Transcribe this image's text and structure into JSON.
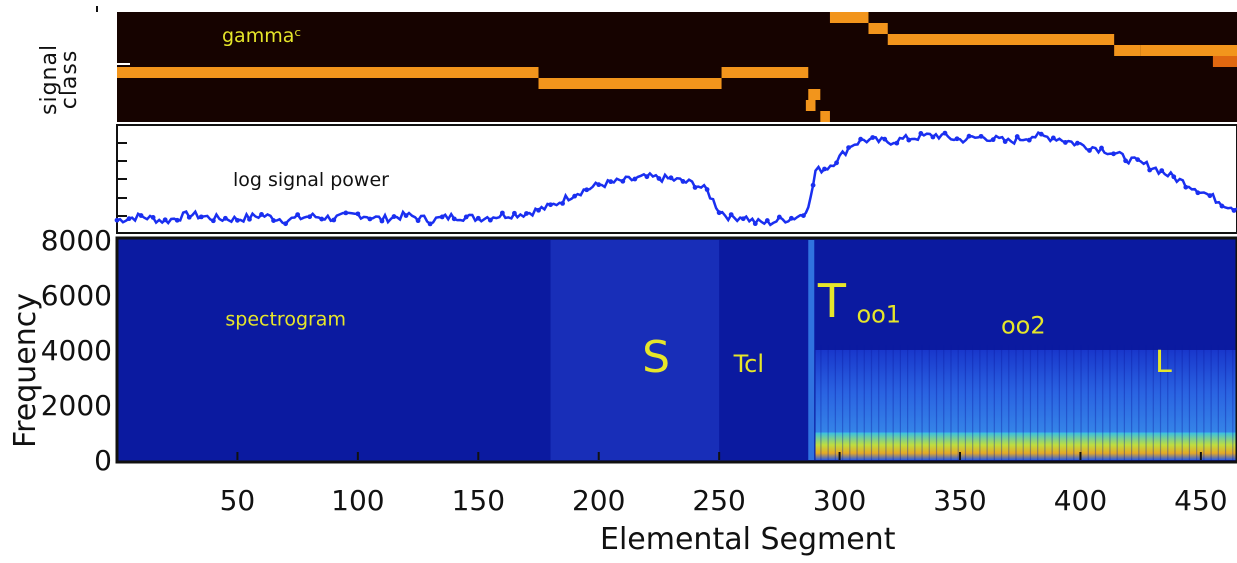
{
  "colors": {
    "class_bg": "#160300",
    "class_fill": "#f2951c",
    "class_dark_fill": "#e06810",
    "power_line": "#1a2ff0",
    "spec_bg": "#0b1aa0",
    "annotation": "#e6e62a",
    "power_label": "#111111"
  },
  "chart_data": [
    {
      "type": "heatmap",
      "panel": "signal-class",
      "ylabel": "signal class",
      "xlim": [
        0,
        465
      ],
      "annotation": "gammaᶜ",
      "segments": [
        {
          "x0": 0,
          "x1": 175,
          "level": 4
        },
        {
          "x0": 175,
          "x1": 251,
          "level": 3
        },
        {
          "x0": 251,
          "x1": 287,
          "level": 4
        },
        {
          "x0": 286,
          "x1": 290,
          "level": 1
        },
        {
          "x0": 287,
          "x1": 292,
          "level": 2
        },
        {
          "x0": 292,
          "x1": 296,
          "level": 0
        },
        {
          "x0": 296,
          "x1": 312,
          "level": 9
        },
        {
          "x0": 312,
          "x1": 320,
          "level": 8
        },
        {
          "x0": 320,
          "x1": 414,
          "level": 7
        },
        {
          "x0": 414,
          "x1": 425,
          "level": 6
        },
        {
          "x0": 425,
          "x1": 465,
          "level": 6
        },
        {
          "x0": 455,
          "x1": 465,
          "level": 5,
          "shade": "dark"
        }
      ]
    },
    {
      "type": "line",
      "panel": "log-signal-power",
      "annotation": "log signal power",
      "xlim": [
        0,
        465
      ],
      "ylim": [
        0,
        1
      ],
      "x": [
        0,
        10,
        20,
        30,
        40,
        50,
        60,
        70,
        80,
        90,
        100,
        110,
        120,
        130,
        140,
        150,
        160,
        170,
        180,
        190,
        200,
        210,
        220,
        230,
        240,
        245,
        250,
        255,
        260,
        265,
        270,
        275,
        280,
        285,
        288,
        290,
        295,
        300,
        305,
        310,
        320,
        330,
        340,
        350,
        360,
        370,
        380,
        390,
        400,
        410,
        420,
        430,
        440,
        450,
        460,
        465
      ],
      "y": [
        0.08,
        0.12,
        0.07,
        0.14,
        0.1,
        0.09,
        0.13,
        0.08,
        0.12,
        0.1,
        0.14,
        0.09,
        0.13,
        0.08,
        0.12,
        0.1,
        0.13,
        0.15,
        0.22,
        0.35,
        0.44,
        0.48,
        0.52,
        0.5,
        0.45,
        0.38,
        0.18,
        0.1,
        0.12,
        0.06,
        0.05,
        0.08,
        0.1,
        0.14,
        0.3,
        0.58,
        0.62,
        0.72,
        0.85,
        0.9,
        0.88,
        0.92,
        0.95,
        0.9,
        0.93,
        0.88,
        0.94,
        0.92,
        0.85,
        0.8,
        0.7,
        0.62,
        0.5,
        0.38,
        0.24,
        0.2
      ]
    },
    {
      "type": "heatmap",
      "panel": "spectrogram",
      "ylabel": "Frequency",
      "xlabel": "Elemental Segment",
      "xlim": [
        0,
        465
      ],
      "ylim": [
        0,
        8000
      ],
      "xticks": [
        50,
        100,
        150,
        200,
        250,
        300,
        350,
        400,
        450
      ],
      "yticks": [
        0,
        2000,
        4000,
        6000,
        8000
      ],
      "annotations": [
        {
          "text": "spectrogram",
          "x": 45,
          "y": 4900
        },
        {
          "text": "S",
          "x": 218,
          "y": 3200
        },
        {
          "text": "Tcl",
          "x": 256,
          "y": 3200
        },
        {
          "text": "T",
          "x": 291,
          "y": 5200
        },
        {
          "text": "oo1",
          "x": 307,
          "y": 5000
        },
        {
          "text": "oo2",
          "x": 367,
          "y": 4600
        },
        {
          "text": "L",
          "x": 431,
          "y": 3200
        }
      ],
      "energy_regions": [
        {
          "x0": 180,
          "x1": 250,
          "f0": 0,
          "f1": 8000,
          "level": 0.22
        },
        {
          "x0": 290,
          "x1": 465,
          "f0": 0,
          "f1": 1000,
          "level": 0.85
        },
        {
          "x0": 290,
          "x1": 465,
          "f0": 1000,
          "f1": 4000,
          "level": 0.45
        }
      ]
    }
  ]
}
